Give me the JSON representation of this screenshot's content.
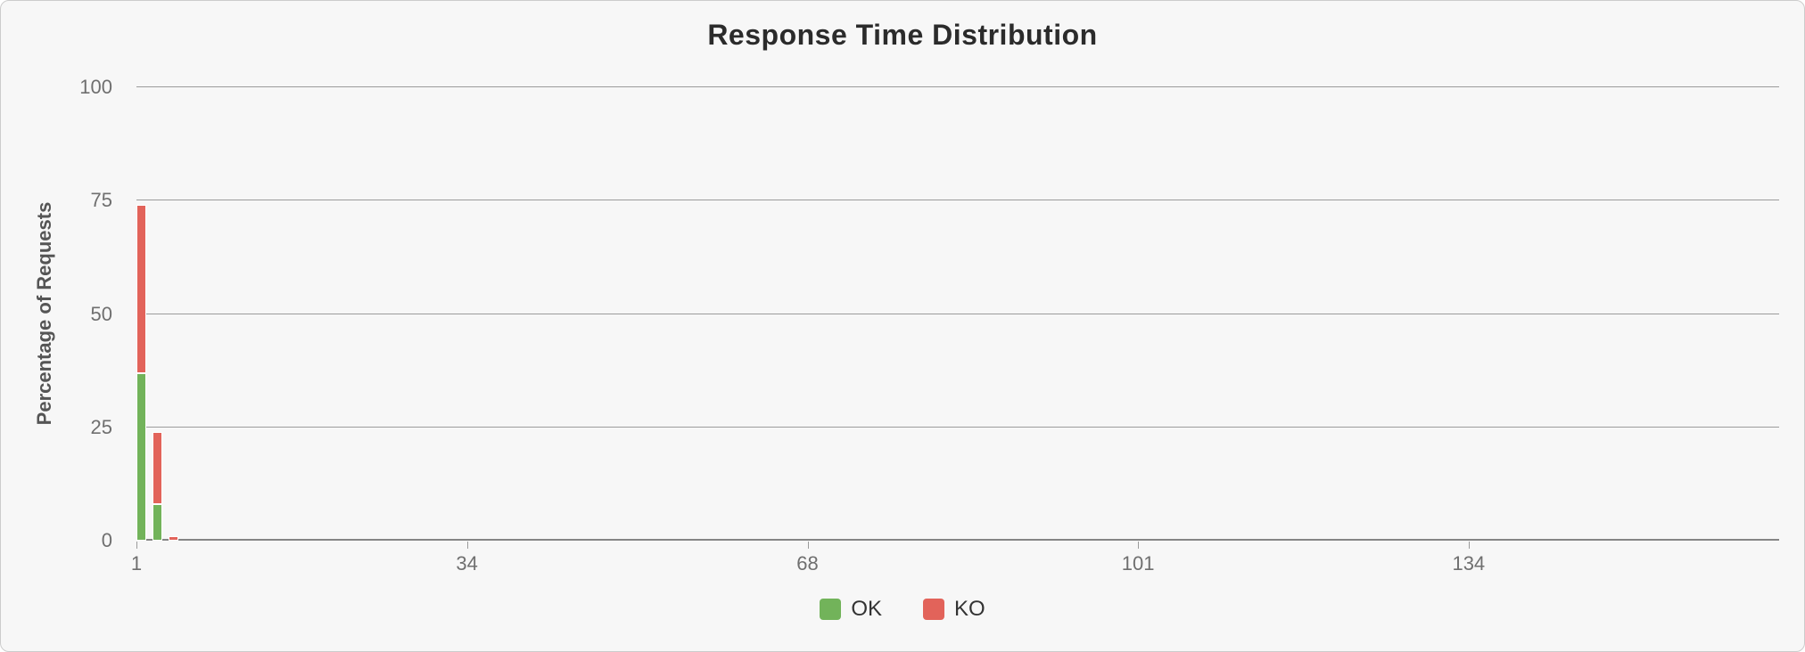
{
  "chart_data": {
    "type": "bar",
    "stacked": true,
    "title": "Response Time Distribution",
    "xlabel": "",
    "ylabel": "Percentage of Requests",
    "ylim": [
      0,
      100
    ],
    "xlim": [
      1,
      165
    ],
    "yticks": [
      0,
      25,
      50,
      75,
      100
    ],
    "xticks": [
      1,
      34,
      68,
      101,
      134
    ],
    "grid": true,
    "legend_position": "bottom",
    "bar_width_units": 1.0,
    "x": [
      1,
      2.6,
      4.2
    ],
    "series": [
      {
        "name": "OK",
        "color": "#72b35a",
        "values": [
          37,
          8,
          0
        ]
      },
      {
        "name": "KO",
        "color": "#e2635a",
        "values": [
          37,
          16,
          1
        ]
      }
    ],
    "colors": {
      "background": "#f7f7f7",
      "gridline": "#9b9b9b",
      "axis_line": "#858585"
    }
  }
}
